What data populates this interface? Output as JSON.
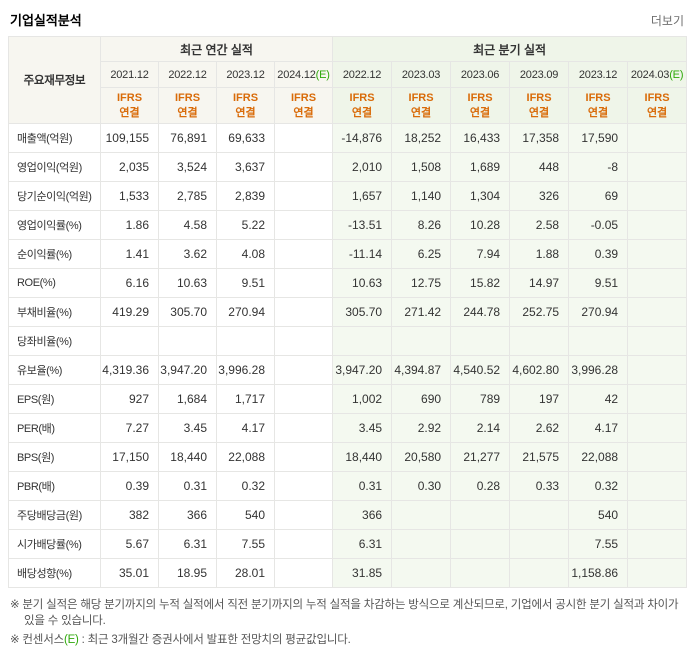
{
  "page": {
    "title": "기업실적분석",
    "more_link": "더보기"
  },
  "colors": {
    "header_bg": "#f7f6f0",
    "header_bg_q": "#eff5e9",
    "q_bg": "#f4f9f0",
    "ifrs": "#d96b09",
    "negative": "#f32b2b",
    "estimate": "#2fa90b"
  },
  "table": {
    "corner_header": "주요재무정보",
    "groups": [
      {
        "label": "최근 연간 실적",
        "section": "annual"
      },
      {
        "label": "최근 분기 실적",
        "section": "quarter"
      }
    ],
    "ifrs_lines": [
      "IFRS",
      "연결"
    ],
    "columns": [
      {
        "period": "2021.12",
        "section": "annual"
      },
      {
        "period": "2022.12",
        "section": "annual"
      },
      {
        "period": "2023.12",
        "section": "annual"
      },
      {
        "period": "2024.12(E)",
        "section": "annual"
      },
      {
        "period": "2022.12",
        "section": "quarter"
      },
      {
        "period": "2023.03",
        "section": "quarter"
      },
      {
        "period": "2023.06",
        "section": "quarter"
      },
      {
        "period": "2023.09",
        "section": "quarter"
      },
      {
        "period": "2023.12",
        "section": "quarter"
      },
      {
        "period": "2024.03(E)",
        "section": "quarter"
      }
    ],
    "rows": [
      {
        "label": "매출액(억원)",
        "values": [
          "109,155",
          "76,891",
          "69,633",
          "",
          "-14,876",
          "18,252",
          "16,433",
          "17,358",
          "17,590",
          ""
        ]
      },
      {
        "label": "영업이익(억원)",
        "values": [
          "2,035",
          "3,524",
          "3,637",
          "",
          "2,010",
          "1,508",
          "1,689",
          "448",
          "-8",
          ""
        ]
      },
      {
        "label": "당기순이익(억원)",
        "values": [
          "1,533",
          "2,785",
          "2,839",
          "",
          "1,657",
          "1,140",
          "1,304",
          "326",
          "69",
          ""
        ]
      },
      {
        "label": "영업이익률(%)",
        "values": [
          "1.86",
          "4.58",
          "5.22",
          "",
          "-13.51",
          "8.26",
          "10.28",
          "2.58",
          "-0.05",
          ""
        ]
      },
      {
        "label": "순이익률(%)",
        "values": [
          "1.41",
          "3.62",
          "4.08",
          "",
          "-11.14",
          "6.25",
          "7.94",
          "1.88",
          "0.39",
          ""
        ]
      },
      {
        "label": "ROE(%)",
        "values": [
          "6.16",
          "10.63",
          "9.51",
          "",
          "10.63",
          "12.75",
          "15.82",
          "14.97",
          "9.51",
          ""
        ]
      },
      {
        "label": "부채비율(%)",
        "values": [
          "419.29",
          "305.70",
          "270.94",
          "",
          "305.70",
          "271.42",
          "244.78",
          "252.75",
          "270.94",
          ""
        ]
      },
      {
        "label": "당좌비율(%)",
        "values": [
          "",
          "",
          "",
          "",
          "",
          "",
          "",
          "",
          "",
          ""
        ]
      },
      {
        "label": "유보율(%)",
        "values": [
          "4,319.36",
          "3,947.20",
          "3,996.28",
          "",
          "3,947.20",
          "4,394.87",
          "4,540.52",
          "4,602.80",
          "3,996.28",
          ""
        ]
      },
      {
        "label": "EPS(원)",
        "values": [
          "927",
          "1,684",
          "1,717",
          "",
          "1,002",
          "690",
          "789",
          "197",
          "42",
          ""
        ]
      },
      {
        "label": "PER(배)",
        "values": [
          "7.27",
          "3.45",
          "4.17",
          "",
          "3.45",
          "2.92",
          "2.14",
          "2.62",
          "4.17",
          ""
        ]
      },
      {
        "label": "BPS(원)",
        "values": [
          "17,150",
          "18,440",
          "22,088",
          "",
          "18,440",
          "20,580",
          "21,277",
          "21,575",
          "22,088",
          ""
        ]
      },
      {
        "label": "PBR(배)",
        "values": [
          "0.39",
          "0.31",
          "0.32",
          "",
          "0.31",
          "0.30",
          "0.28",
          "0.33",
          "0.32",
          ""
        ]
      },
      {
        "label": "주당배당금(원)",
        "values": [
          "382",
          "366",
          "540",
          "",
          "366",
          "",
          "",
          "",
          "540",
          ""
        ]
      },
      {
        "label": "시가배당률(%)",
        "values": [
          "5.67",
          "6.31",
          "7.55",
          "",
          "6.31",
          "",
          "",
          "",
          "7.55",
          ""
        ]
      },
      {
        "label": "배당성향(%)",
        "values": [
          "35.01",
          "18.95",
          "28.01",
          "",
          "31.85",
          "",
          "",
          "",
          "1,158.86",
          ""
        ]
      }
    ]
  },
  "footnotes": [
    "※ 분기 실적은 해당 분기까지의 누적 실적에서 직전 분기까지의 누적 실적을 차감하는 방식으로 계산되므로, 기업에서 공시한 분기 실적과 차이가 있을 수 있습니다.",
    "※ 컨센서스(E) : 최근 3개월간 증권사에서 발표한 전망치의 평균값입니다."
  ]
}
